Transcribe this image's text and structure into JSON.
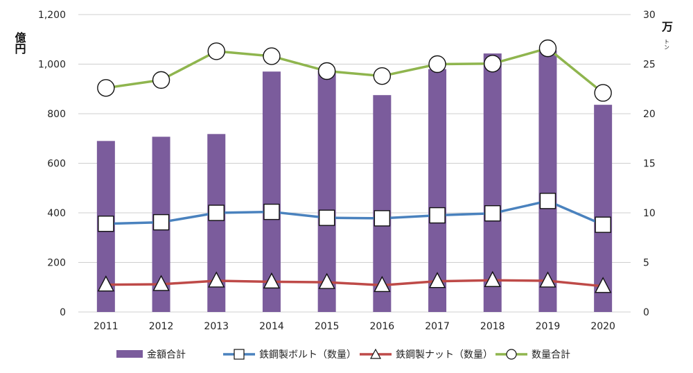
{
  "chart_data": {
    "type": "bar",
    "categories": [
      "2011",
      "2012",
      "2013",
      "2014",
      "2015",
      "2016",
      "2017",
      "2018",
      "2019",
      "2020"
    ],
    "left_axis": {
      "unit_label": "億円",
      "ylim": [
        0,
        1200
      ],
      "ticks": [
        "0",
        "200",
        "400",
        "600",
        "800",
        "1,000",
        "1,200"
      ]
    },
    "right_axis": {
      "unit_label": "万トン",
      "unit_main": "万",
      "unit_small": "トン",
      "ylim": [
        0,
        30
      ],
      "ticks": [
        "0",
        "5",
        "10",
        "15",
        "20",
        "25",
        "30"
      ]
    },
    "grid": true,
    "legend_position": "bottom",
    "series": [
      {
        "name": "金額合計",
        "type": "bar",
        "axis": "left",
        "color": "#7b5c9c",
        "values": [
          690,
          707,
          718,
          970,
          975,
          875,
          980,
          1043,
          1055,
          836
        ]
      },
      {
        "name": "鉄鋼製ボルト（数量）",
        "type": "line",
        "axis": "right",
        "color": "#4a82be",
        "marker": "square",
        "values": [
          8.9,
          9.05,
          10.0,
          10.1,
          9.5,
          9.45,
          9.75,
          9.95,
          11.2,
          8.8
        ]
      },
      {
        "name": "鉄鋼製ナット（数量）",
        "type": "line",
        "axis": "right",
        "color": "#be4a48",
        "marker": "triangle",
        "values": [
          2.75,
          2.8,
          3.15,
          3.05,
          3.0,
          2.7,
          3.1,
          3.2,
          3.15,
          2.6
        ]
      },
      {
        "name": "数量合計",
        "type": "line",
        "axis": "right",
        "color": "#8fb54e",
        "marker": "circle",
        "values": [
          22.6,
          23.4,
          26.3,
          25.8,
          24.3,
          23.8,
          25.0,
          25.05,
          26.6,
          22.1
        ]
      }
    ]
  }
}
